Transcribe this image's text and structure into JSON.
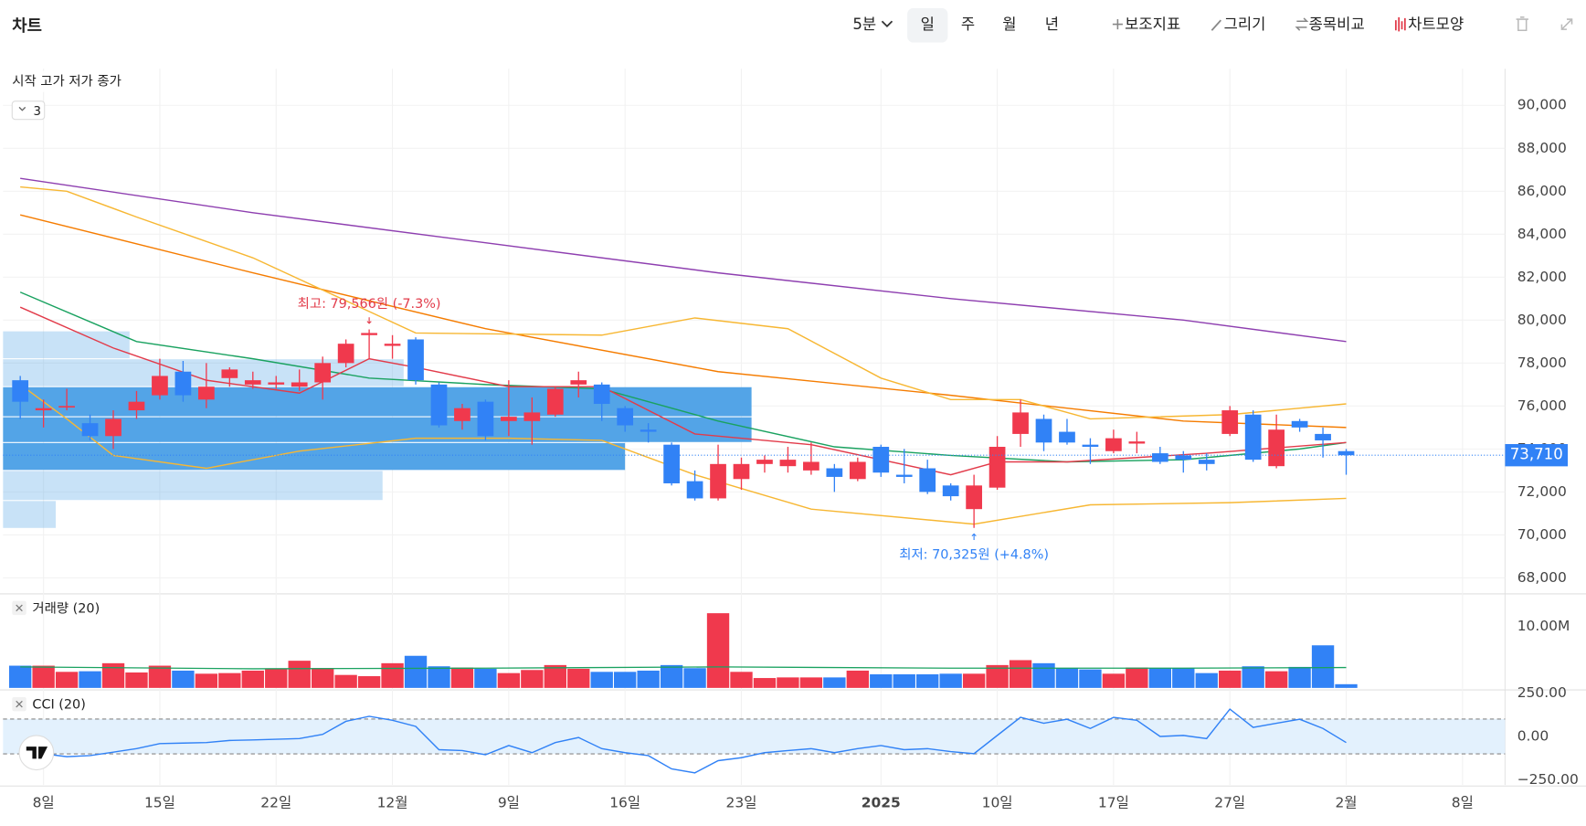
{
  "toolbar": {
    "title": "차트",
    "interval": "5분",
    "periods": [
      "일",
      "주",
      "월",
      "년"
    ],
    "tools": [
      "보조지표",
      "그리기",
      "종목비교",
      "차트모양"
    ]
  },
  "chart_data": [
    {
      "type": "candlestick",
      "legend": "시작 고가 저가 종가",
      "collapsed_count": 3,
      "up_color": "#f0394d",
      "down_color": "#3182f6",
      "open": [
        77200,
        75800,
        76000,
        75200,
        74600,
        75800,
        76500,
        77600,
        76300,
        77300,
        77000,
        77000,
        76900,
        77100,
        78000,
        79300,
        78800,
        79100,
        77000,
        75300,
        76200,
        75300,
        75300,
        75600,
        77000,
        77000,
        75900,
        74900,
        74200,
        72500,
        71700,
        72600,
        73300,
        73200,
        73000,
        73100,
        72600,
        74100,
        72800,
        73100,
        72300,
        71200,
        72200,
        74700,
        75400,
        74800,
        74200,
        73900,
        74250,
        73800,
        73700,
        73500,
        74700,
        75600,
        73200,
        75300,
        74700,
        73900
      ],
      "close": [
        76200,
        75900,
        76000,
        74600,
        75400,
        76200,
        77400,
        76500,
        76900,
        77700,
        77200,
        77100,
        77100,
        78000,
        78900,
        79400,
        78900,
        77200,
        75100,
        75900,
        74600,
        75500,
        75700,
        76800,
        77200,
        76100,
        75100,
        74800,
        72400,
        71700,
        73300,
        73300,
        73500,
        73500,
        73400,
        72700,
        73400,
        72900,
        72700,
        72000,
        71800,
        72300,
        74100,
        75700,
        74300,
        74300,
        74100,
        74500,
        74350,
        73400,
        73500,
        73300,
        75800,
        73500,
        74900,
        75000,
        74400,
        73710
      ],
      "high": [
        77400,
        76300,
        76800,
        75600,
        75800,
        76700,
        78200,
        78100,
        78000,
        77800,
        77600,
        77400,
        77700,
        78300,
        79100,
        79566,
        79300,
        79200,
        77100,
        76100,
        76300,
        77200,
        76400,
        76900,
        77600,
        77100,
        76000,
        75200,
        74300,
        73000,
        74200,
        73600,
        73700,
        74100,
        74300,
        73300,
        73600,
        74200,
        74000,
        73500,
        72400,
        72800,
        74600,
        76300,
        75600,
        75400,
        74500,
        74900,
        74800,
        74100,
        73900,
        73800,
        76000,
        75800,
        75600,
        75400,
        75000,
        74000
      ],
      "low": [
        75400,
        75000,
        75800,
        74400,
        74000,
        75400,
        76300,
        76200,
        75900,
        76900,
        76800,
        76800,
        76700,
        76300,
        77800,
        78200,
        78200,
        77000,
        75000,
        74900,
        74400,
        74600,
        74200,
        75500,
        76400,
        75300,
        74800,
        74300,
        72300,
        71600,
        71600,
        72100,
        72900,
        72900,
        72800,
        72000,
        72500,
        72700,
        72400,
        71900,
        71600,
        70325,
        72100,
        74100,
        73900,
        74200,
        73300,
        73800,
        73800,
        73300,
        72900,
        73000,
        74600,
        73400,
        73100,
        74800,
        73600,
        72800
      ],
      "overlays": [
        {
          "color": "#8e3fb0",
          "x": [
            0,
            10,
            20,
            30,
            40,
            50,
            57
          ],
          "values": [
            86600,
            85000,
            83600,
            82200,
            81000,
            80000,
            79000
          ]
        },
        {
          "color": "#f57c00",
          "x": [
            0,
            10,
            20,
            30,
            40,
            50,
            57
          ],
          "values": [
            84900,
            82200,
            79600,
            77600,
            76500,
            75300,
            75000
          ]
        },
        {
          "color": "#1aa260",
          "x": [
            0,
            5,
            10,
            15,
            20,
            25,
            30,
            35,
            40,
            45,
            50,
            55,
            57
          ],
          "values": [
            81300,
            79000,
            78200,
            77300,
            77000,
            76800,
            75300,
            74100,
            73700,
            73400,
            73500,
            74000,
            74300
          ]
        },
        {
          "color": "#e23b4a",
          "x": [
            0,
            4,
            8,
            12,
            15,
            17,
            21,
            25,
            29,
            34,
            40,
            42,
            45,
            51,
            57
          ],
          "values": [
            80600,
            78700,
            77200,
            76600,
            78200,
            77800,
            76900,
            76900,
            74700,
            74200,
            72800,
            73400,
            73400,
            73800,
            74300
          ]
        },
        {
          "color": "#f7b733",
          "x": [
            0,
            2,
            5,
            10,
            17,
            25,
            29,
            33,
            37,
            40,
            43,
            46,
            52,
            57
          ],
          "values": [
            86200,
            86000,
            84800,
            82900,
            79400,
            79300,
            80100,
            79600,
            77300,
            76300,
            76300,
            75400,
            75600,
            76100
          ]
        },
        {
          "color": "#f7b733",
          "x": [
            0,
            2,
            4,
            8,
            12,
            17,
            21,
            25,
            29,
            34,
            41,
            46,
            52,
            57
          ],
          "values": [
            77000,
            75400,
            73700,
            73100,
            73900,
            74500,
            74500,
            74400,
            72800,
            71200,
            70500,
            71400,
            71500,
            71700
          ]
        }
      ],
      "volume_profile": {
        "color": "#4a9fe6",
        "bins": [
          70300,
          71600,
          73000,
          74300,
          75500,
          76900,
          78200,
          79500
        ],
        "values": [
          5,
          36,
          59,
          71,
          71,
          38,
          12
        ]
      },
      "annotations": [
        {
          "text": "최고: 79,566원 (-7.3%)",
          "x": 15,
          "value": 79566,
          "color": "#e23b4a"
        },
        {
          "text": "최저: 70,325원 (+4.8%)",
          "x": 41,
          "value": 70325,
          "color": "#3182f6"
        }
      ],
      "last_price": {
        "value": 73710,
        "label": "73,710"
      },
      "xlim": [
        -0.74,
        63.83
      ],
      "xticks": [
        {
          "value": 1,
          "label": "8일"
        },
        {
          "value": 6,
          "label": "15일"
        },
        {
          "value": 11,
          "label": "22일"
        },
        {
          "value": 16,
          "label": "12월"
        },
        {
          "value": 21,
          "label": "9일"
        },
        {
          "value": 26,
          "label": "16일"
        },
        {
          "value": 31,
          "label": "23일"
        },
        {
          "value": 37,
          "label": "2025"
        },
        {
          "value": 42,
          "label": "10일"
        },
        {
          "value": 47,
          "label": "17일"
        },
        {
          "value": 52,
          "label": "27일"
        },
        {
          "value": 57,
          "label": "2월"
        },
        {
          "value": 62,
          "label": "8일"
        }
      ],
      "ylim": [
        67350,
        91700
      ],
      "yticks": [
        {
          "value": 68000,
          "label": "68,000"
        },
        {
          "value": 70000,
          "label": "70,000"
        },
        {
          "value": 72000,
          "label": "72,000"
        },
        {
          "value": 74000,
          "label": "74,000"
        },
        {
          "value": 76000,
          "label": "76,000"
        },
        {
          "value": 78000,
          "label": "78,000"
        },
        {
          "value": 80000,
          "label": "80,000"
        },
        {
          "value": 82000,
          "label": "82,000"
        },
        {
          "value": 84000,
          "label": "84,000"
        },
        {
          "value": 86000,
          "label": "86,000"
        },
        {
          "value": 88000,
          "label": "88,000"
        },
        {
          "value": 90000,
          "label": "90,000"
        }
      ],
      "grid": true
    },
    {
      "type": "bar",
      "title": "거래량 (20)",
      "values": [
        3.6,
        3.6,
        2.6,
        2.7,
        4.0,
        2.5,
        3.6,
        2.8,
        2.3,
        2.4,
        2.8,
        3.1,
        4.4,
        3.2,
        2.1,
        1.9,
        4.0,
        5.2,
        3.5,
        3.3,
        3.1,
        2.4,
        2.9,
        3.7,
        3.1,
        2.6,
        2.6,
        2.8,
        3.7,
        3.2,
        12.1,
        2.6,
        1.6,
        1.7,
        1.7,
        1.7,
        2.8,
        2.2,
        2.2,
        2.2,
        2.3,
        2.3,
        3.7,
        4.5,
        4.0,
        3.2,
        3.0,
        2.3,
        3.3,
        3.2,
        3.2,
        2.4,
        2.8,
        3.5,
        2.7,
        3.4,
        6.9,
        0.6
      ],
      "ma": {
        "color": "#1aa260",
        "x": [
          0,
          10,
          20,
          30,
          40,
          50,
          57
        ],
        "values": [
          3.4,
          3.1,
          3.2,
          3.4,
          3.2,
          3.2,
          3.3
        ]
      },
      "ylim": [
        0,
        14.75
      ],
      "yticks": [
        {
          "value": 10,
          "label": "10.00M"
        }
      ]
    },
    {
      "type": "line",
      "title": "CCI (20)",
      "color": "#3182f6",
      "band_color": "#e3f1fd",
      "values": [
        -130,
        -99,
        -116,
        -110,
        -90,
        -70,
        -41,
        -38,
        -35,
        -23,
        -20,
        -16,
        -12,
        12,
        87,
        116,
        93,
        58,
        -76,
        -81,
        -105,
        -52,
        -93,
        -35,
        -6,
        -70,
        -93,
        -110,
        -186,
        -209,
        -139,
        -122,
        -93,
        -81,
        -70,
        -93,
        -70,
        -52,
        -76,
        -70,
        -87,
        -99,
        6,
        110,
        76,
        99,
        46,
        110,
        93,
        0,
        6,
        -12,
        157,
        52,
        76,
        99,
        46,
        -35
      ],
      "bands": [
        -100,
        100
      ],
      "ylim": [
        -279,
        250
      ],
      "yticks": [
        {
          "value": 250,
          "label": "250.00"
        },
        {
          "value": 0,
          "label": "0.00"
        },
        {
          "value": -250,
          "label": "−250.00"
        }
      ]
    }
  ]
}
